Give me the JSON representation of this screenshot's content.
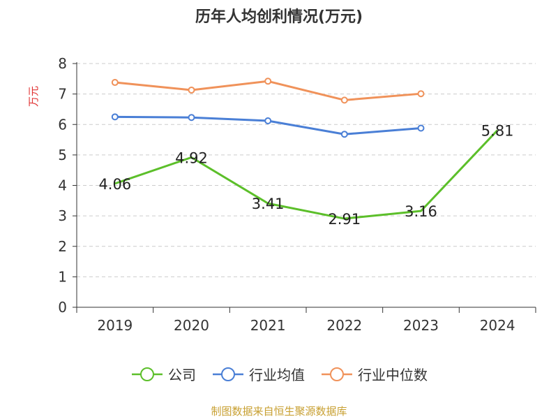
{
  "title": "历年人均创利情况(万元)",
  "footer": "制图数据来自恒生聚源数据库",
  "colors": {
    "company": "#5cbf2a",
    "industry_avg": "#4a7fd6",
    "industry_median": "#f0925a",
    "ylabel": "#e03030",
    "grid": "#cccccc",
    "axis": "#333333"
  },
  "legend": [
    {
      "label": "公司",
      "color": "#5cbf2a"
    },
    {
      "label": "行业均值",
      "color": "#4a7fd6"
    },
    {
      "label": "行业中位数",
      "color": "#f0925a"
    }
  ],
  "chart_data": {
    "type": "line",
    "title": "历年人均创利情况(万元)",
    "xlabel": "",
    "ylabel": "万元",
    "categories": [
      "2019",
      "2020",
      "2021",
      "2022",
      "2023",
      "2024"
    ],
    "ylim": [
      0,
      8
    ],
    "yticks": [
      "0",
      "1",
      "2",
      "3",
      "4",
      "5",
      "6",
      "7",
      "8"
    ],
    "grid": true,
    "legend_position": "bottom",
    "series": [
      {
        "name": "公司",
        "color": "#5cbf2a",
        "values": [
          4.06,
          4.92,
          3.41,
          2.91,
          3.16,
          5.81
        ],
        "labels": [
          "4.06",
          "4.92",
          "3.41",
          "2.91",
          "3.16",
          "5.81"
        ],
        "show_labels": true
      },
      {
        "name": "行业均值",
        "color": "#4a7fd6",
        "values": [
          6.25,
          6.23,
          6.12,
          5.68,
          5.88,
          null
        ],
        "show_labels": false
      },
      {
        "name": "行业中位数",
        "color": "#f0925a",
        "values": [
          7.38,
          7.13,
          7.42,
          6.8,
          7.01,
          null
        ],
        "show_labels": false
      }
    ]
  }
}
